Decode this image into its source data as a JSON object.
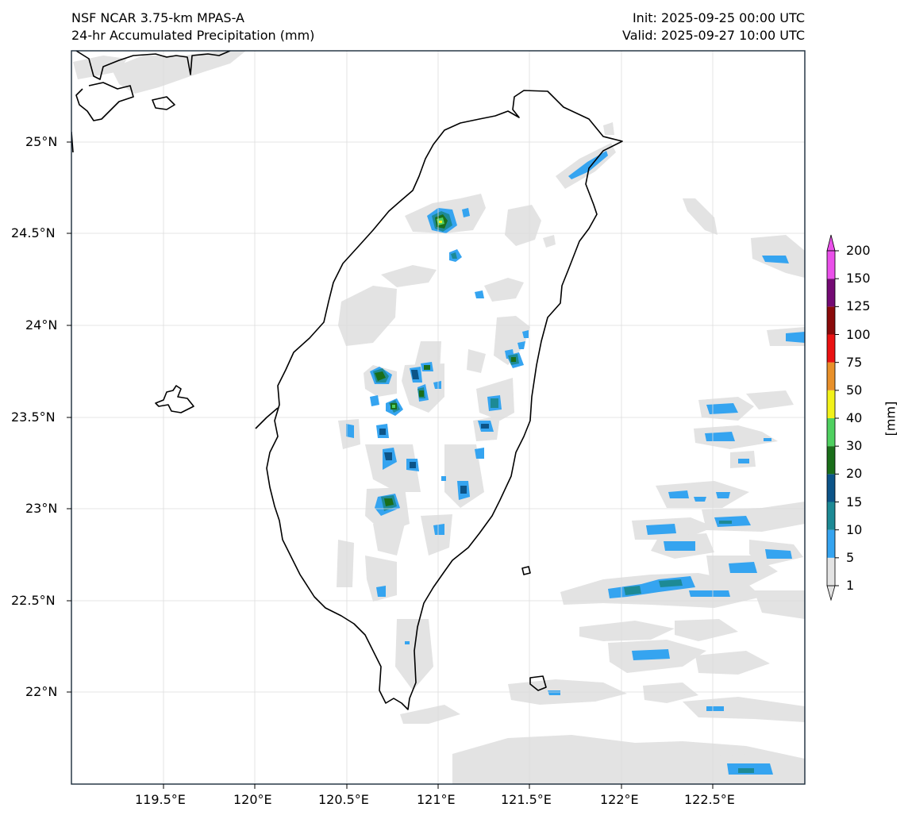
{
  "header": {
    "model": "NSF NCAR 3.75-km MPAS-A",
    "field": "24-hr Accumulated Precipitation (mm)",
    "init": "Init: 2025-09-25 00:00 UTC",
    "valid": "Valid: 2025-09-27 10:00 UTC"
  },
  "axes": {
    "lon_labels": [
      "119.5°E",
      "120°E",
      "120.5°E",
      "121°E",
      "121.5°E",
      "122°E",
      "122.5°E"
    ],
    "lat_labels": [
      "25°N",
      "24.5°N",
      "24°N",
      "23.5°N",
      "23°N",
      "22.5°N",
      "22°N"
    ]
  },
  "colorbar": {
    "unit_label": "[mm]",
    "levels": [
      "1",
      "5",
      "10",
      "15",
      "20",
      "30",
      "40",
      "50",
      "75",
      "100",
      "125",
      "150",
      "200"
    ],
    "colors": [
      "#e3e3e3",
      "#35a4f0",
      "#1d8a95",
      "#0c5488",
      "#1a6e1a",
      "#4fd060",
      "#f2f21a",
      "#e8902a",
      "#ea1212",
      "#8a0a0a",
      "#740a74",
      "#ea50ea"
    ]
  }
}
